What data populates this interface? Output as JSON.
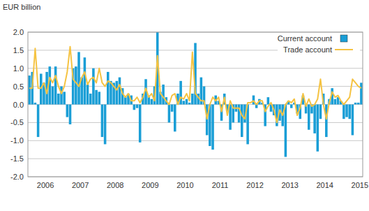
{
  "chart_data": {
    "type": "bar",
    "y_label": "EUR billion",
    "categories": [
      null,
      null,
      null,
      null,
      null,
      null,
      "2006",
      null,
      null,
      null,
      null,
      null,
      null,
      null,
      null,
      null,
      null,
      null,
      "2007",
      null,
      null,
      null,
      null,
      null,
      null,
      null,
      null,
      null,
      null,
      null,
      "2008",
      null,
      null,
      null,
      null,
      null,
      null,
      null,
      null,
      null,
      null,
      null,
      "2009",
      null,
      null,
      null,
      null,
      null,
      null,
      null,
      null,
      null,
      null,
      null,
      "2010",
      null,
      null,
      null,
      null,
      null,
      null,
      null,
      null,
      null,
      null,
      null,
      "2011",
      null,
      null,
      null,
      null,
      null,
      null,
      null,
      null,
      null,
      null,
      null,
      "2012",
      null,
      null,
      null,
      null,
      null,
      null,
      null,
      null,
      null,
      null,
      null,
      "2013",
      null,
      null,
      null,
      null,
      null,
      null,
      null,
      null,
      null,
      null,
      null,
      "2014",
      null,
      null,
      null,
      null,
      null,
      null,
      null,
      null,
      null,
      null,
      null,
      "2015"
    ],
    "series": [
      {
        "name": "Current account",
        "type": "bar",
        "color": "#1a9ed6",
        "values": [
          0.8,
          0.9,
          0.05,
          -0.9,
          0.85,
          0.6,
          0.9,
          1.05,
          0.5,
          1.05,
          0.3,
          0.5,
          0.35,
          -0.35,
          -0.55,
          1.0,
          1.05,
          1.45,
          0.75,
          1.3,
          0.55,
          0.3,
          1.0,
          0.4,
          0.35,
          -0.9,
          -1.1,
          0.9,
          0.65,
          0.6,
          0.65,
          0.75,
          0.45,
          0.2,
          0.3,
          0.25,
          -0.15,
          -0.1,
          -1.05,
          0.3,
          0.7,
          0.25,
          0.15,
          0.5,
          2.0,
          0.35,
          0.55,
          0.2,
          -0.5,
          -0.2,
          -0.75,
          0.3,
          0.65,
          0.1,
          0.15,
          0.05,
          0.3,
          1.7,
          0.3,
          0.75,
          0.5,
          -0.85,
          -1.15,
          -1.25,
          0.25,
          0.1,
          -0.45,
          0.3,
          -0.2,
          -0.7,
          -0.5,
          -0.2,
          -0.5,
          -0.9,
          -0.5,
          -1.1,
          0.0,
          0.25,
          -0.1,
          0.15,
          0.05,
          -0.6,
          0.2,
          -0.2,
          -0.3,
          -0.6,
          -0.45,
          -0.6,
          -1.45,
          0.1,
          -0.1,
          0.05,
          -0.25,
          -0.4,
          0.25,
          -0.25,
          -0.7,
          -0.25,
          -0.8,
          -1.3,
          -0.4,
          0.3,
          -0.9,
          0.15,
          0.45,
          0.15,
          0.2,
          0.1,
          -0.4,
          -0.35,
          -0.4,
          -0.85,
          0.05,
          0.05,
          0.6
        ]
      },
      {
        "name": "Trade account",
        "type": "line",
        "color": "#f5c342",
        "values": [
          0.45,
          0.45,
          1.55,
          0.45,
          0.45,
          0.6,
          0.3,
          0.75,
          0.6,
          0.8,
          0.5,
          0.3,
          0.5,
          0.9,
          1.6,
          0.7,
          0.6,
          0.5,
          0.75,
          0.9,
          0.55,
          0.7,
          0.75,
          0.6,
          1.0,
          0.6,
          0.5,
          0.65,
          0.6,
          0.5,
          0.4,
          0.55,
          0.3,
          0.2,
          0.3,
          0.1,
          0.1,
          0.2,
          0.05,
          0.2,
          0.45,
          0.2,
          0.3,
          0.1,
          1.35,
          0.3,
          0.2,
          0.1,
          0.0,
          0.25,
          0.3,
          0.0,
          0.2,
          0.15,
          0.3,
          0.1,
          1.45,
          0.3,
          0.2,
          0.1,
          0.1,
          -0.4,
          0.0,
          0.2,
          0.1,
          0.2,
          -0.2,
          0.2,
          -0.3,
          0.1,
          -0.1,
          -0.1,
          -0.1,
          -0.3,
          -0.4,
          0.05,
          0.05,
          0.1,
          0.0,
          0.1,
          0.1,
          -0.2,
          -0.05,
          0.05,
          -0.15,
          -0.5,
          -0.15,
          -0.3,
          0.0,
          0.1,
          0.05,
          0.15,
          -0.3,
          -0.1,
          0.3,
          -0.05,
          0.15,
          -0.05,
          0.0,
          0.15,
          0.7,
          0.0,
          -0.4,
          0.05,
          0.35,
          0.2,
          0.25,
          0.1,
          0.0,
          0.1,
          0.2,
          0.7,
          0.6,
          0.5,
          0.45
        ]
      }
    ],
    "ylim": [
      -2.0,
      2.0
    ],
    "yticks": [
      {
        "value": -2.0,
        "label": "-2.0"
      },
      {
        "value": -1.5,
        "label": "-1.5"
      },
      {
        "value": -1.0,
        "label": "-1.0"
      },
      {
        "value": -0.5,
        "label": "-0.5"
      },
      {
        "value": 0,
        "label": "0.0"
      },
      {
        "value": 0.5,
        "label": "0.5"
      },
      {
        "value": 1.0,
        "label": "1.0"
      },
      {
        "value": 1.5,
        "label": "1.5"
      },
      {
        "value": 2.0,
        "label": "2.0"
      }
    ],
    "grid": true,
    "legend": "top-right"
  }
}
